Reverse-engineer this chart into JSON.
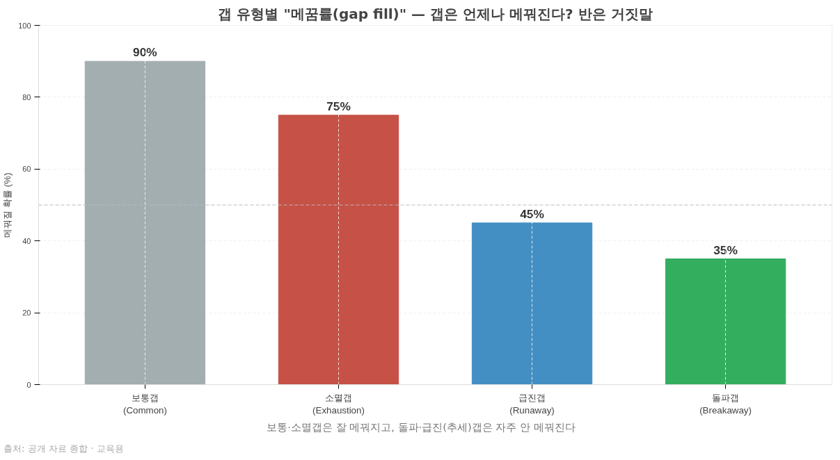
{
  "chart_data": {
    "type": "bar",
    "title": "갭 유형별 \"메꿈률(gap fill)\" — 갭은 언제나 메꿔진다? 반은 거짓말",
    "ylabel": "메꿔질 확률 (%)",
    "categories": [
      "보통갭\n(Common)",
      "소멸갭\n(Exhaustion)",
      "급진갭\n(Runaway)",
      "돌파갭\n(Breakaway)"
    ],
    "values": [
      90,
      75,
      45,
      35
    ],
    "value_labels": [
      "90%",
      "75%",
      "45%",
      "35%"
    ],
    "colors": [
      "#a2aeb0",
      "#c65146",
      "#438fc3",
      "#33ae5f"
    ],
    "ylim": [
      0,
      100
    ],
    "yticks": [
      0,
      20,
      40,
      60,
      80,
      100
    ],
    "grid": true,
    "ref_lines": [
      {
        "axis": "y",
        "value": 50,
        "color": "#bbbbbb",
        "line_style": "dashed"
      }
    ],
    "annotations": [
      "보통·소멸갭은 잘 메꿔지고, 돌파·급진(추세)갭은 자주 안 메꿔진다",
      "출처: 공개 자료 종합 · 교육용"
    ]
  }
}
